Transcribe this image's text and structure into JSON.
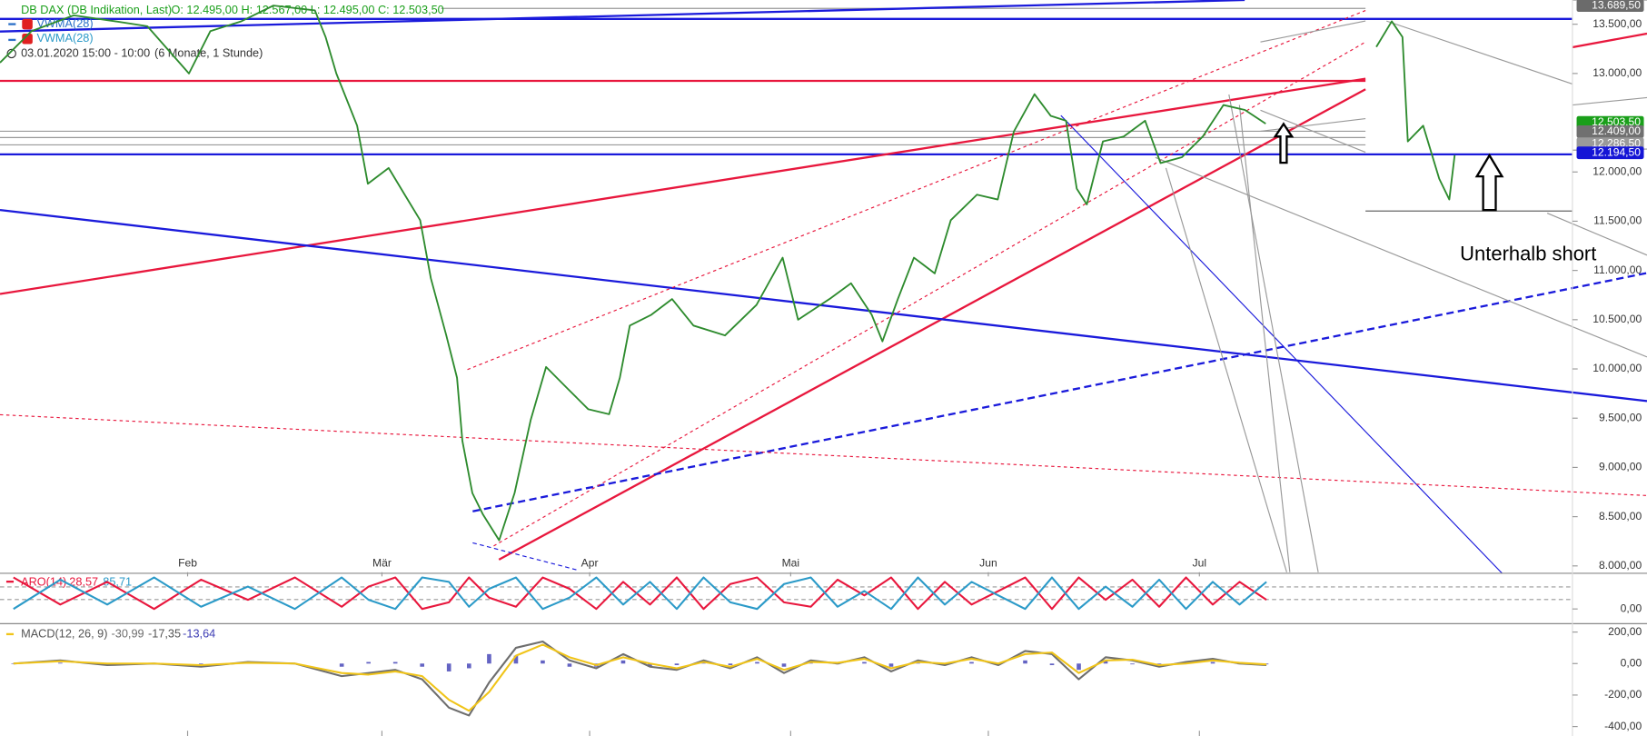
{
  "chart_data": [
    {
      "type": "line",
      "title": "DB DAX (DB Indikation, Last)",
      "ohlc": "O: 12.495,00  H: 12.567,00  L: 12.495,00  C: 12.503,50",
      "indicators": [
        "VWMA(28)",
        "VWMA(28)"
      ],
      "period": "03.01.2020 15:00 - 10:00",
      "range_note": "(6 Monate, 1 Stunde)",
      "annotation": "Unterhalb short",
      "x": [
        1,
        5.7,
        12,
        18.2,
        23,
        29.2,
        32.4,
        37,
        41.8,
        48,
        49.6,
        51.2,
        54.3,
        55.9,
        59,
        61.4,
        63.7,
        65.3,
        67.6,
        69.2,
        70,
        71.5,
        73.1,
        75.5,
        77.8,
        80.2,
        82.5,
        85.7,
        88.8,
        91.9,
        93.5,
        95,
        98.2,
        101.3,
        104.5,
        109.2,
        113.9,
        117.8,
        120.1,
        124.8,
        128,
        131.1,
        132.7,
        135,
        137.4,
        140.5,
        142.9,
        146.8,
        149.9,
        152.3,
        155.4,
        157.8,
        160.1,
        161.7,
        163.2,
        165.6,
        168.7,
        171.9,
        174.2,
        177.4,
        180.5,
        183.6,
        186.8,
        189.9,
        198,
        206.4,
        208.7,
        210.3,
        211.1,
        213.4,
        215.8,
        217.3,
        218.1
      ],
      "series": [
        {
          "color": "#2e8b2e",
          "values": [
            13110,
            13430,
            13590,
            13530,
            13480,
            13000,
            13430,
            13530,
            13690,
            13640,
            13370,
            13000,
            12470,
            11880,
            12040,
            11770,
            11510,
            10920,
            10340,
            9910,
            9270,
            8740,
            8520,
            8260,
            8740,
            9480,
            10020,
            9800,
            9590,
            9540,
            9910,
            10440,
            10550,
            10710,
            10440,
            10340,
            10650,
            11130,
            10500,
            10710,
            10870,
            10550,
            10280,
            10710,
            11130,
            10970,
            11510,
            11770,
            11720,
            12410,
            12790,
            12570,
            12520,
            11830,
            11670,
            12310,
            12360,
            12520,
            12090,
            12150,
            12360,
            12680,
            12630,
            12490,
            null,
            13270,
            13530,
            13370,
            12310,
            12470,
            11930,
            11720,
            12170
          ]
        }
      ],
      "xlim": [
        1,
        246.8
      ],
      "xticks": [
        {
          "value": 29,
          "label": "Feb"
        },
        {
          "value": 58,
          "label": "Mär"
        },
        {
          "value": 89,
          "label": "Apr"
        },
        {
          "value": 119,
          "label": "Mai"
        },
        {
          "value": 148.5,
          "label": "Jun"
        },
        {
          "value": 180,
          "label": "Jul"
        }
      ],
      "ylim": [
        7936,
        13746
      ],
      "yticks": [
        {
          "value": 8000,
          "label": "8.000,00"
        },
        {
          "value": 8500,
          "label": "8.500,00"
        },
        {
          "value": 9000,
          "label": "9.000,00"
        },
        {
          "value": 9500,
          "label": "9.500,00"
        },
        {
          "value": 10000,
          "label": "10.000,00"
        },
        {
          "value": 10500,
          "label": "10.500,00"
        },
        {
          "value": 11000,
          "label": "11.000,00"
        },
        {
          "value": 11500,
          "label": "11.500,00"
        },
        {
          "value": 12000,
          "label": "12.000,00"
        },
        {
          "value": 13000,
          "label": "13.000,00"
        },
        {
          "value": 13500,
          "label": "13.500,00"
        }
      ],
      "price_markers": [
        {
          "value": 13689.5,
          "label": "13.689,50",
          "color": "#6b6b6b"
        },
        {
          "value": 12503.5,
          "label": "12.503,50",
          "color": "#1a9f1a"
        },
        {
          "value": 12409,
          "label": "12.409,00",
          "color": "#707070"
        },
        {
          "value": 12286.5,
          "label": "12.286,50",
          "color": "#9a9a9a"
        },
        {
          "value": 12194.5,
          "label": "12.194,50",
          "color": "#1515d6"
        }
      ]
    },
    {
      "type": "line",
      "title": "ARO(14)",
      "readout": [
        "28,57",
        "85,71"
      ],
      "x": [
        3,
        10,
        17,
        24,
        31,
        38,
        45,
        52,
        56,
        60,
        64,
        68,
        71,
        74,
        78,
        82,
        86,
        90,
        94,
        98,
        102,
        106,
        110,
        114,
        118,
        122,
        126,
        130,
        134,
        138,
        142,
        146,
        150,
        154,
        158,
        162,
        166,
        170,
        174,
        178,
        182,
        186,
        190
      ],
      "series": [
        {
          "color": "#e8173d",
          "values": [
            100,
            14,
            86,
            0,
            93,
            29,
            100,
            7,
            71,
            100,
            0,
            21,
            100,
            36,
            7,
            100,
            64,
            0,
            86,
            14,
            100,
            0,
            79,
            100,
            21,
            7,
            93,
            43,
            100,
            0,
            86,
            14,
            57,
            100,
            0,
            100,
            29,
            93,
            7,
            100,
            14,
            86,
            29
          ]
        },
        {
          "color": "#2b9ac8",
          "values": [
            0,
            93,
            14,
            100,
            7,
            71,
            0,
            100,
            29,
            0,
            100,
            86,
            7,
            64,
            100,
            0,
            36,
            100,
            14,
            86,
            0,
            100,
            21,
            0,
            79,
            100,
            7,
            57,
            0,
            100,
            14,
            86,
            43,
            0,
            100,
            0,
            71,
            7,
            93,
            0,
            86,
            14,
            86
          ]
        }
      ],
      "ylim": [
        0,
        100
      ],
      "yticks": [
        {
          "value": 0,
          "label": "0,00"
        }
      ],
      "levels": [
        30,
        70
      ]
    },
    {
      "type": "line",
      "title": "MACD(12, 26, 9)",
      "readout": [
        "-30,99",
        "-17,35",
        "-13,64"
      ],
      "x": [
        3,
        10,
        17,
        24,
        31,
        38,
        45,
        52,
        56,
        60,
        64,
        68,
        71,
        74,
        78,
        82,
        86,
        90,
        94,
        98,
        102,
        106,
        110,
        114,
        118,
        122,
        126,
        130,
        134,
        138,
        142,
        146,
        150,
        154,
        158,
        162,
        166,
        170,
        174,
        178,
        182,
        186,
        190
      ],
      "series": [
        {
          "color": "#6e6e6e",
          "values": [
            0,
            20,
            -10,
            0,
            -20,
            10,
            0,
            -80,
            -60,
            -40,
            -100,
            -280,
            -330,
            -120,
            100,
            140,
            20,
            -30,
            60,
            -20,
            -40,
            20,
            -30,
            40,
            -60,
            20,
            0,
            40,
            -50,
            20,
            -10,
            40,
            -10,
            80,
            60,
            -100,
            40,
            20,
            -20,
            10,
            30,
            0,
            -10
          ]
        },
        {
          "color": "#f0c419",
          "values": [
            0,
            15,
            0,
            0,
            -10,
            5,
            0,
            -60,
            -70,
            -50,
            -80,
            -230,
            -300,
            -180,
            50,
            120,
            40,
            -10,
            40,
            0,
            -30,
            10,
            -20,
            30,
            -40,
            10,
            5,
            30,
            -30,
            10,
            0,
            30,
            0,
            60,
            70,
            -60,
            20,
            25,
            -10,
            0,
            20,
            5,
            -5
          ]
        }
      ],
      "histogram": {
        "color": "#3c3cb4",
        "values": [
          0,
          5,
          -10,
          0,
          -10,
          5,
          0,
          -20,
          10,
          10,
          -20,
          -50,
          -30,
          60,
          50,
          20,
          -20,
          -20,
          20,
          -20,
          -10,
          10,
          -10,
          10,
          -20,
          10,
          -5,
          10,
          -20,
          10,
          -10,
          10,
          -10,
          20,
          -10,
          -40,
          20,
          -5,
          -10,
          10,
          10,
          -5,
          -5
        ]
      },
      "ylim": [
        -400,
        200
      ],
      "yticks": [
        {
          "value": 200,
          "label": "200,00"
        },
        {
          "value": 0,
          "label": "0,00"
        },
        {
          "value": -200,
          "label": "-200,00"
        },
        {
          "value": -400,
          "label": "-400,00"
        }
      ]
    }
  ]
}
